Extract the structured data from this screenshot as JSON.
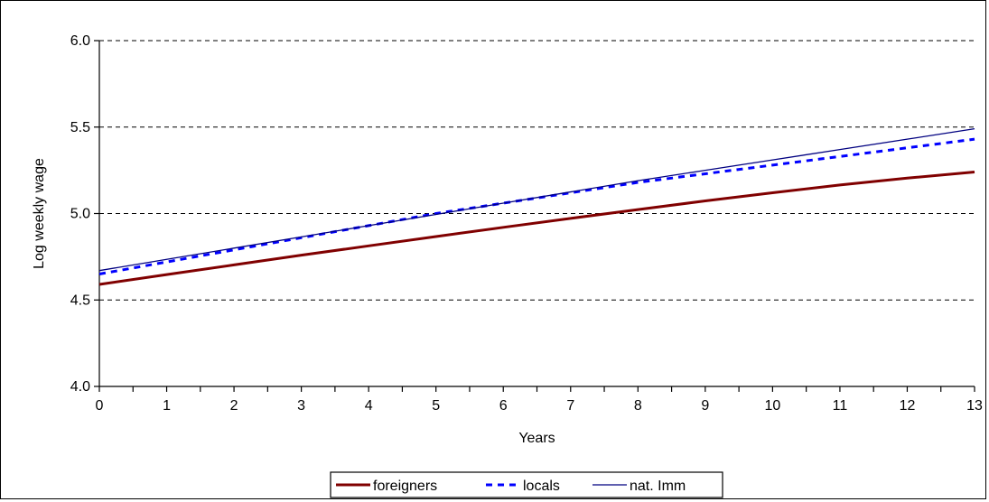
{
  "chart_data": {
    "type": "line",
    "title": "",
    "xlabel": "Years",
    "ylabel": "Log weekly wage",
    "x": [
      0,
      1,
      2,
      3,
      4,
      5,
      6,
      7,
      8,
      9,
      10,
      11,
      12,
      13
    ],
    "x_tick_labels": [
      "0",
      "1",
      "2",
      "3",
      "4",
      "5",
      "6",
      "7",
      "8",
      "9",
      "10",
      "11",
      "12",
      "13"
    ],
    "y_tick_labels": [
      "4.0",
      "4.5",
      "5.0",
      "5.5",
      "6.0"
    ],
    "y_ticks": [
      4.0,
      4.5,
      5.0,
      5.5,
      6.0
    ],
    "xlim": [
      0,
      13
    ],
    "ylim": [
      4.0,
      6.0
    ],
    "grid": "horizontal dashed",
    "legend_position": "bottom",
    "series": [
      {
        "name": "foreigners",
        "color": "#800000",
        "style": "solid-thick",
        "values": [
          4.59,
          4.647,
          4.703,
          4.759,
          4.813,
          4.867,
          4.92,
          4.972,
          5.023,
          5.073,
          5.12,
          5.165,
          5.205,
          5.24
        ]
      },
      {
        "name": "locals",
        "color": "#0000ff",
        "style": "dashed",
        "values": [
          4.65,
          4.72,
          4.79,
          4.86,
          4.93,
          5.0,
          5.06,
          5.12,
          5.18,
          5.23,
          5.28,
          5.33,
          5.38,
          5.43
        ]
      },
      {
        "name": "nat. Imm",
        "color": "#000080",
        "style": "solid-thin",
        "values": [
          4.67,
          4.735,
          4.8,
          4.865,
          4.93,
          4.995,
          5.06,
          5.125,
          5.19,
          5.25,
          5.31,
          5.37,
          5.43,
          5.49
        ]
      }
    ]
  }
}
